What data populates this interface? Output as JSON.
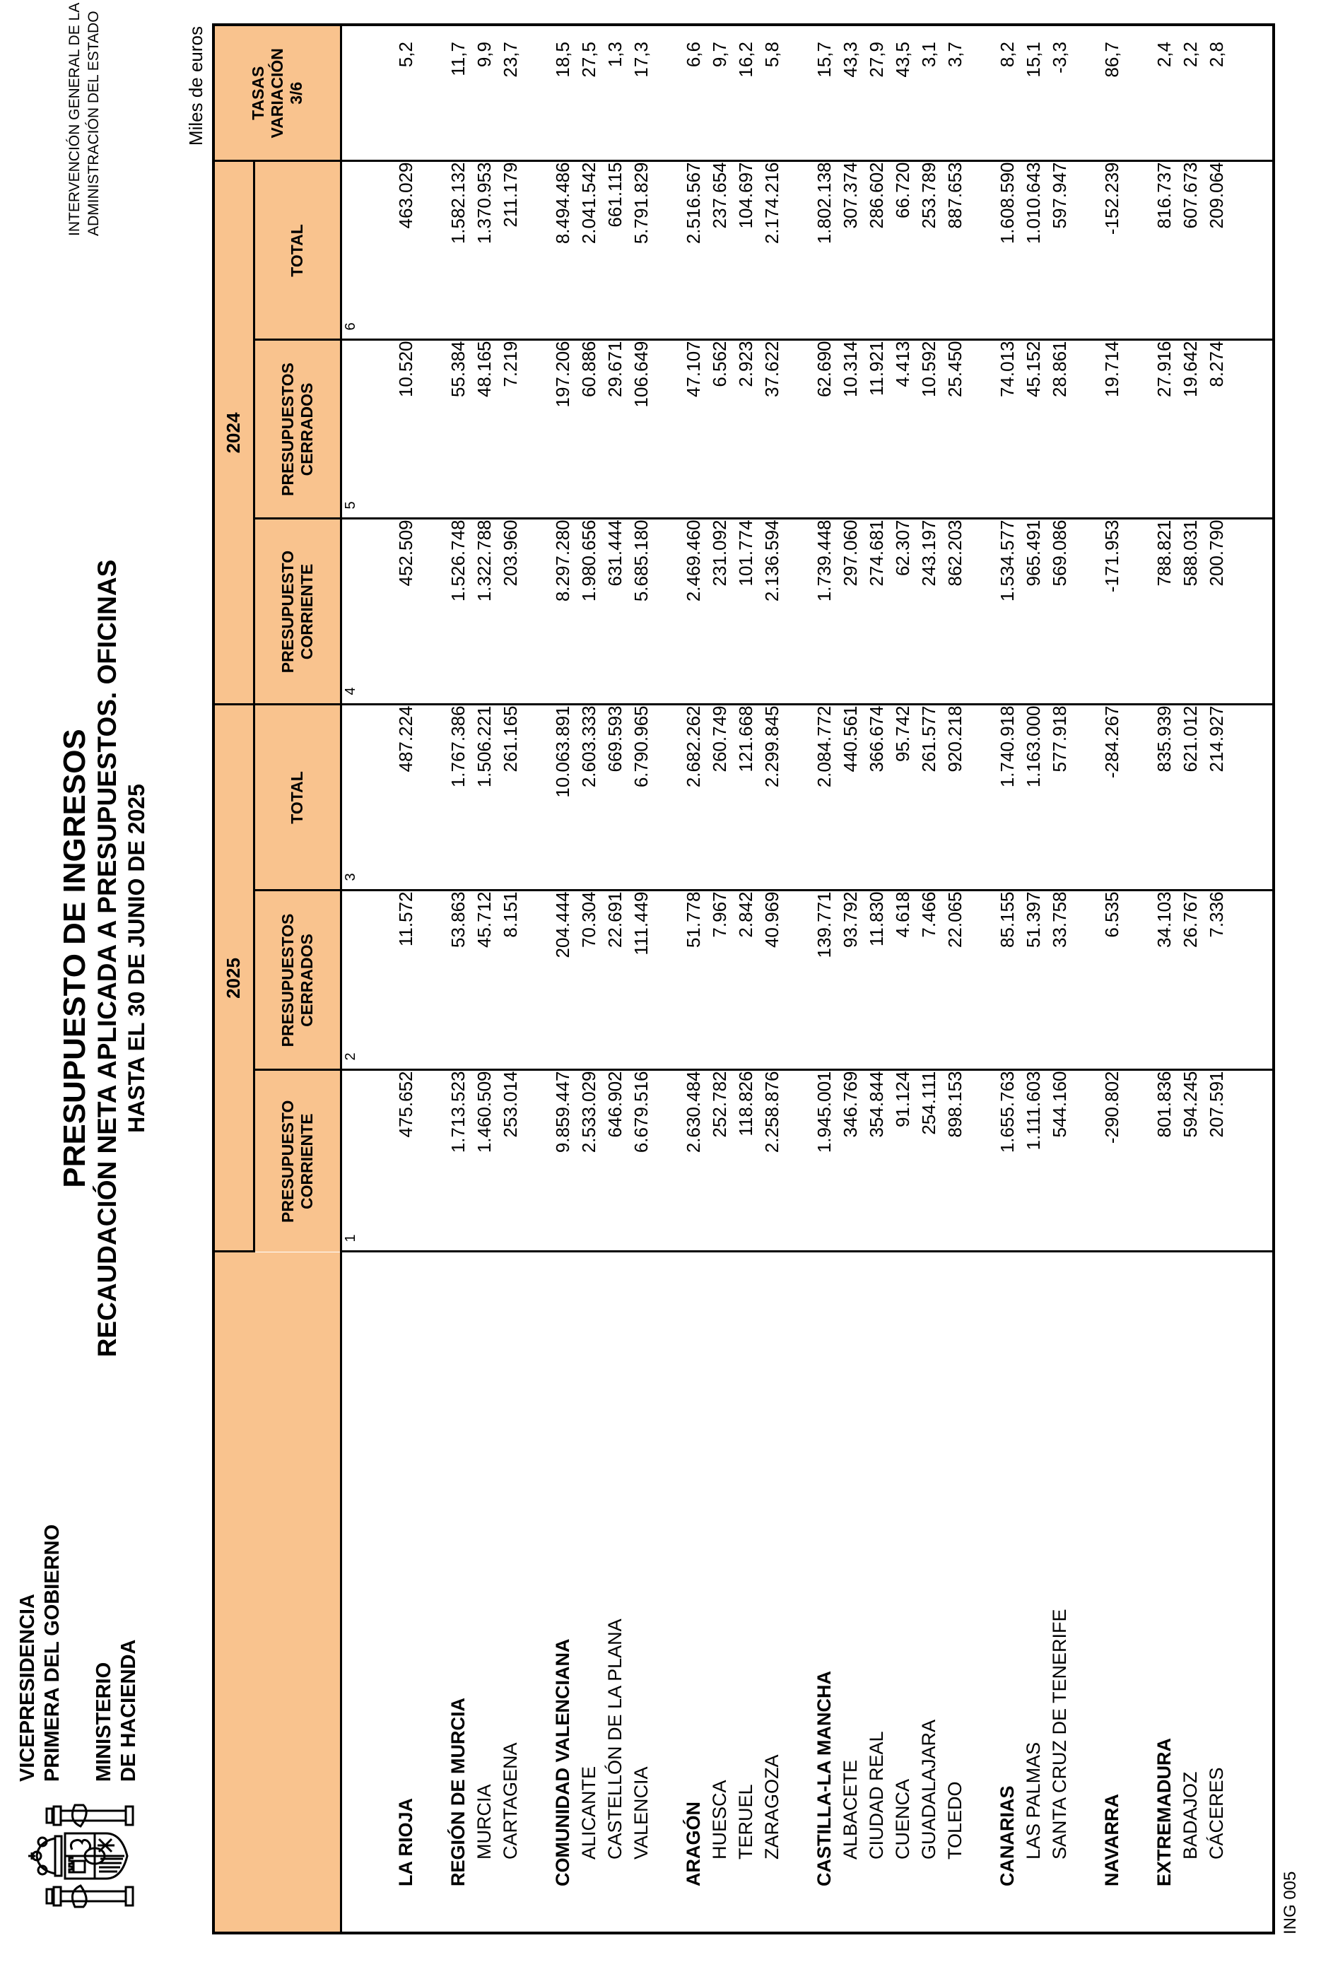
{
  "page": {
    "units_label": "Miles de euros",
    "form_code": "ING 005",
    "colors": {
      "header_fill": "#F9C38E",
      "border": "#000000",
      "background": "#FFFFFF"
    }
  },
  "government": {
    "department_lines": [
      "VICEPRESIDENCIA",
      "PRIMERA DEL GOBIERNO"
    ],
    "ministry_lines": [
      "MINISTERIO",
      "DE HACIENDA"
    ],
    "logo": "spain-coat-of-arms"
  },
  "agency": {
    "lines": [
      "INTERVENCIÓN GENERAL DE LA",
      "ADMINISTRACIÓN DEL ESTADO"
    ]
  },
  "title": {
    "lines": [
      "PRESUPUESTO DE INGRESOS",
      "RECAUDACIÓN NETA APLICADA A PRESUPUESTOS. OFICINAS",
      "HASTA EL 30 DE JUNIO DE 2025"
    ]
  },
  "table": {
    "year_groups": [
      {
        "year": "2025",
        "columns": [
          "PRESUPUESTO CORRIENTE",
          "PRESUPUESTOS CERRADOS",
          "TOTAL"
        ]
      },
      {
        "year": "2024",
        "columns": [
          "PRESUPUESTO CORRIENTE",
          "PRESUPUESTOS CERRADOS",
          "TOTAL"
        ]
      }
    ],
    "tasas_header_lines": [
      "TASAS",
      "VARIACIÓN",
      "3/6"
    ],
    "column_numbers": [
      "1",
      "2",
      "3",
      "4",
      "5",
      "6"
    ],
    "rows": [
      {
        "type": "group",
        "label": "LA RIOJA",
        "values": [
          "475.652",
          "11.572",
          "487.224",
          "452.509",
          "10.520",
          "463.029",
          "5,2"
        ]
      },
      {
        "type": "blank"
      },
      {
        "type": "group",
        "label": "REGIÓN DE MURCIA",
        "values": [
          "1.713.523",
          "53.863",
          "1.767.386",
          "1.526.748",
          "55.384",
          "1.582.132",
          "11,7"
        ]
      },
      {
        "type": "sub",
        "label": "MURCIA",
        "values": [
          "1.460.509",
          "45.712",
          "1.506.221",
          "1.322.788",
          "48.165",
          "1.370.953",
          "9,9"
        ]
      },
      {
        "type": "sub",
        "label": "CARTAGENA",
        "values": [
          "253.014",
          "8.151",
          "261.165",
          "203.960",
          "7.219",
          "211.179",
          "23,7"
        ]
      },
      {
        "type": "blank"
      },
      {
        "type": "group",
        "label": "COMUNIDAD VALENCIANA",
        "values": [
          "9.859.447",
          "204.444",
          "10.063.891",
          "8.297.280",
          "197.206",
          "8.494.486",
          "18,5"
        ]
      },
      {
        "type": "sub",
        "label": "ALICANTE",
        "values": [
          "2.533.029",
          "70.304",
          "2.603.333",
          "1.980.656",
          "60.886",
          "2.041.542",
          "27,5"
        ]
      },
      {
        "type": "sub",
        "label": "CASTELLÓN DE LA PLANA",
        "values": [
          "646.902",
          "22.691",
          "669.593",
          "631.444",
          "29.671",
          "661.115",
          "1,3"
        ]
      },
      {
        "type": "sub",
        "label": "VALENCIA",
        "values": [
          "6.679.516",
          "111.449",
          "6.790.965",
          "5.685.180",
          "106.649",
          "5.791.829",
          "17,3"
        ]
      },
      {
        "type": "blank"
      },
      {
        "type": "group",
        "label": "ARAGÓN",
        "values": [
          "2.630.484",
          "51.778",
          "2.682.262",
          "2.469.460",
          "47.107",
          "2.516.567",
          "6,6"
        ]
      },
      {
        "type": "sub",
        "label": "HUESCA",
        "values": [
          "252.782",
          "7.967",
          "260.749",
          "231.092",
          "6.562",
          "237.654",
          "9,7"
        ]
      },
      {
        "type": "sub",
        "label": "TERUEL",
        "values": [
          "118.826",
          "2.842",
          "121.668",
          "101.774",
          "2.923",
          "104.697",
          "16,2"
        ]
      },
      {
        "type": "sub",
        "label": "ZARAGOZA",
        "values": [
          "2.258.876",
          "40.969",
          "2.299.845",
          "2.136.594",
          "37.622",
          "2.174.216",
          "5,8"
        ]
      },
      {
        "type": "blank"
      },
      {
        "type": "group",
        "label": "CASTILLA-LA MANCHA",
        "values": [
          "1.945.001",
          "139.771",
          "2.084.772",
          "1.739.448",
          "62.690",
          "1.802.138",
          "15,7"
        ]
      },
      {
        "type": "sub",
        "label": "ALBACETE",
        "values": [
          "346.769",
          "93.792",
          "440.561",
          "297.060",
          "10.314",
          "307.374",
          "43,3"
        ]
      },
      {
        "type": "sub",
        "label": "CIUDAD REAL",
        "values": [
          "354.844",
          "11.830",
          "366.674",
          "274.681",
          "11.921",
          "286.602",
          "27,9"
        ]
      },
      {
        "type": "sub",
        "label": "CUENCA",
        "values": [
          "91.124",
          "4.618",
          "95.742",
          "62.307",
          "4.413",
          "66.720",
          "43,5"
        ]
      },
      {
        "type": "sub",
        "label": "GUADALAJARA",
        "values": [
          "254.111",
          "7.466",
          "261.577",
          "243.197",
          "10.592",
          "253.789",
          "3,1"
        ]
      },
      {
        "type": "sub",
        "label": "TOLEDO",
        "values": [
          "898.153",
          "22.065",
          "920.218",
          "862.203",
          "25.450",
          "887.653",
          "3,7"
        ]
      },
      {
        "type": "blank"
      },
      {
        "type": "group",
        "label": "CANARIAS",
        "values": [
          "1.655.763",
          "85.155",
          "1.740.918",
          "1.534.577",
          "74.013",
          "1.608.590",
          "8,2"
        ]
      },
      {
        "type": "sub",
        "label": "LAS PALMAS",
        "values": [
          "1.111.603",
          "51.397",
          "1.163.000",
          "965.491",
          "45.152",
          "1.010.643",
          "15,1"
        ]
      },
      {
        "type": "sub",
        "label": "SANTA CRUZ DE TENERIFE",
        "values": [
          "544.160",
          "33.758",
          "577.918",
          "569.086",
          "28.861",
          "597.947",
          "-3,3"
        ]
      },
      {
        "type": "blank"
      },
      {
        "type": "group",
        "label": "NAVARRA",
        "values": [
          "-290.802",
          "6.535",
          "-284.267",
          "-171.953",
          "19.714",
          "-152.239",
          "86,7"
        ]
      },
      {
        "type": "blank"
      },
      {
        "type": "group",
        "label": "EXTREMADURA",
        "values": [
          "801.836",
          "34.103",
          "835.939",
          "788.821",
          "27.916",
          "816.737",
          "2,4"
        ]
      },
      {
        "type": "sub",
        "label": "BADAJOZ",
        "values": [
          "594.245",
          "26.767",
          "621.012",
          "588.031",
          "19.642",
          "607.673",
          "2,2"
        ]
      },
      {
        "type": "sub",
        "label": "CÁCERES",
        "values": [
          "207.591",
          "7.336",
          "214.927",
          "200.790",
          "8.274",
          "209.064",
          "2,8"
        ]
      }
    ]
  }
}
